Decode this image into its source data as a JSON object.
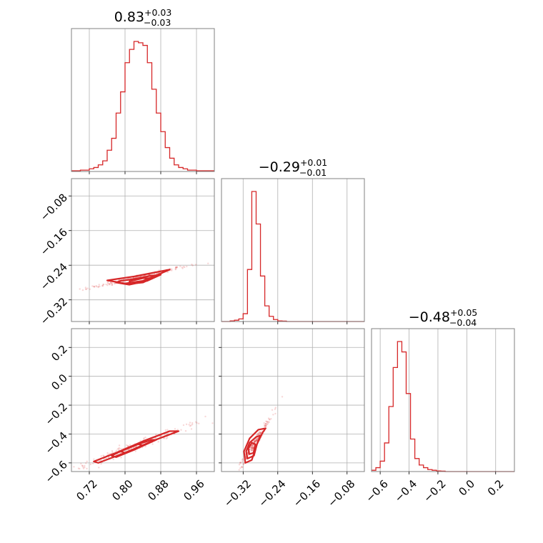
{
  "chart_data": {
    "type": "corner",
    "color": "#d62728",
    "parameters": [
      {
        "title": {
          "value": "0.83",
          "plus": "+0.03",
          "minus": "−0.03"
        },
        "range": [
          0.68,
          1.0
        ],
        "ticks": [
          0.72,
          0.8,
          0.88,
          0.96
        ],
        "tick_labels": [
          "0.72",
          "0.80",
          "0.88",
          "0.96"
        ],
        "hist": {
          "bins": [
            0.68,
            0.69,
            0.7,
            0.71,
            0.72,
            0.73,
            0.74,
            0.75,
            0.76,
            0.77,
            0.78,
            0.79,
            0.8,
            0.81,
            0.82,
            0.83,
            0.84,
            0.85,
            0.86,
            0.87,
            0.88,
            0.89,
            0.9,
            0.91,
            0.92,
            0.93,
            0.94,
            0.95,
            0.96,
            0.97,
            0.98,
            0.99,
            1.0
          ],
          "counts": [
            0.5,
            0.5,
            1,
            1,
            2,
            3,
            5,
            8,
            16,
            25,
            44,
            60,
            82,
            92,
            98,
            97,
            95,
            82,
            62,
            44,
            30,
            18,
            10,
            5,
            3,
            2,
            1,
            1,
            0.5,
            0.5,
            0.5,
            0.5
          ]
        }
      },
      {
        "title": {
          "value": "−0.29",
          "plus": "+0.01",
          "minus": "−0.01"
        },
        "range": [
          -0.37,
          -0.04
        ],
        "ticks": [
          -0.32,
          -0.24,
          -0.16,
          -0.08
        ],
        "tick_labels": [
          "−0.32",
          "−0.24",
          "−0.16",
          "−0.08"
        ],
        "hist": {
          "bins": [
            -0.37,
            -0.36,
            -0.35,
            -0.34,
            -0.33,
            -0.32,
            -0.31,
            -0.3,
            -0.29,
            -0.28,
            -0.27,
            -0.26,
            -0.25,
            -0.24,
            -0.23,
            -0.22,
            -0.21,
            -0.2,
            -0.19,
            -0.18,
            -0.17,
            -0.16,
            -0.15,
            -0.14,
            -0.13,
            -0.12,
            -0.11,
            -0.1,
            -0.09,
            -0.08,
            -0.07,
            -0.06,
            -0.05,
            -0.04
          ],
          "counts": [
            0,
            0,
            0.5,
            1,
            2,
            6,
            40,
            100,
            75,
            35,
            12,
            4,
            1.5,
            0.5,
            0.3,
            0,
            0,
            0,
            0,
            0,
            0,
            0,
            0,
            0,
            0,
            0,
            0,
            0,
            0,
            0,
            0,
            0,
            0
          ]
        }
      },
      {
        "title": {
          "value": "−0.48",
          "plus": "+0.05",
          "minus": "−0.04"
        },
        "range": [
          -0.66,
          0.33
        ],
        "ticks": [
          -0.6,
          -0.4,
          -0.2,
          0.0,
          0.2
        ],
        "tick_labels": [
          "−0.6",
          "−0.4",
          "−0.2",
          "0.0",
          "0.2"
        ],
        "hist": {
          "bins": [
            -0.66,
            -0.63,
            -0.6,
            -0.57,
            -0.54,
            -0.51,
            -0.48,
            -0.45,
            -0.42,
            -0.39,
            -0.36,
            -0.33,
            -0.3,
            -0.27,
            -0.24,
            -0.21,
            -0.18,
            -0.15,
            -0.12,
            -0.09,
            -0.06,
            -0.03,
            0.0,
            0.03,
            0.06,
            0.09,
            0.12,
            0.15,
            0.18,
            0.21,
            0.24,
            0.27,
            0.3,
            0.33
          ],
          "counts": [
            1,
            3,
            8,
            22,
            50,
            80,
            100,
            92,
            60,
            25,
            10,
            5,
            3,
            1.5,
            1,
            0.5,
            0.3,
            0,
            0,
            0,
            0,
            0,
            0,
            0,
            0,
            0,
            0,
            0,
            0,
            0,
            0,
            0,
            0
          ]
        }
      }
    ],
    "pairs": [
      {
        "x_param": 0,
        "y_param": 1,
        "contours": [
          [
            [
              0.76,
              -0.275
            ],
            [
              0.8,
              -0.282
            ],
            [
              0.84,
              -0.276
            ],
            [
              0.88,
              -0.259
            ],
            [
              0.9,
              -0.25
            ],
            [
              0.86,
              -0.258
            ],
            [
              0.82,
              -0.266
            ],
            [
              0.78,
              -0.272
            ]
          ],
          [
            [
              0.78,
              -0.28
            ],
            [
              0.81,
              -0.285
            ],
            [
              0.85,
              -0.276
            ],
            [
              0.88,
              -0.262
            ],
            [
              0.86,
              -0.264
            ],
            [
              0.82,
              -0.272
            ],
            [
              0.79,
              -0.276
            ]
          ],
          [
            [
              0.81,
              -0.283
            ],
            [
              0.84,
              -0.28
            ],
            [
              0.86,
              -0.27
            ],
            [
              0.84,
              -0.27
            ],
            [
              0.81,
              -0.277
            ]
          ]
        ]
      },
      {
        "x_param": 0,
        "y_param": 2,
        "contours": [
          [
            [
              0.74,
              -0.6
            ],
            [
              0.8,
              -0.53
            ],
            [
              0.86,
              -0.45
            ],
            [
              0.92,
              -0.38
            ],
            [
              0.9,
              -0.38
            ],
            [
              0.84,
              -0.45
            ],
            [
              0.78,
              -0.53
            ],
            [
              0.73,
              -0.59
            ]
          ],
          [
            [
              0.78,
              -0.56
            ],
            [
              0.82,
              -0.51
            ],
            [
              0.87,
              -0.44
            ],
            [
              0.86,
              -0.44
            ],
            [
              0.81,
              -0.49
            ],
            [
              0.77,
              -0.55
            ]
          ],
          [
            [
              0.8,
              -0.53
            ],
            [
              0.84,
              -0.48
            ],
            [
              0.83,
              -0.47
            ],
            [
              0.79,
              -0.52
            ]
          ]
        ]
      },
      {
        "x_param": 1,
        "y_param": 2,
        "contours": [
          [
            [
              -0.315,
              -0.6
            ],
            [
              -0.3,
              -0.58
            ],
            [
              -0.288,
              -0.47
            ],
            [
              -0.275,
              -0.39
            ],
            [
              -0.268,
              -0.36
            ],
            [
              -0.285,
              -0.37
            ],
            [
              -0.305,
              -0.43
            ],
            [
              -0.318,
              -0.52
            ]
          ],
          [
            [
              -0.31,
              -0.57
            ],
            [
              -0.295,
              -0.55
            ],
            [
              -0.288,
              -0.47
            ],
            [
              -0.28,
              -0.41
            ],
            [
              -0.29,
              -0.42
            ],
            [
              -0.305,
              -0.46
            ],
            [
              -0.313,
              -0.52
            ]
          ],
          [
            [
              -0.306,
              -0.54
            ],
            [
              -0.296,
              -0.53
            ],
            [
              -0.292,
              -0.47
            ],
            [
              -0.3,
              -0.46
            ],
            [
              -0.308,
              -0.5
            ]
          ]
        ]
      }
    ]
  }
}
